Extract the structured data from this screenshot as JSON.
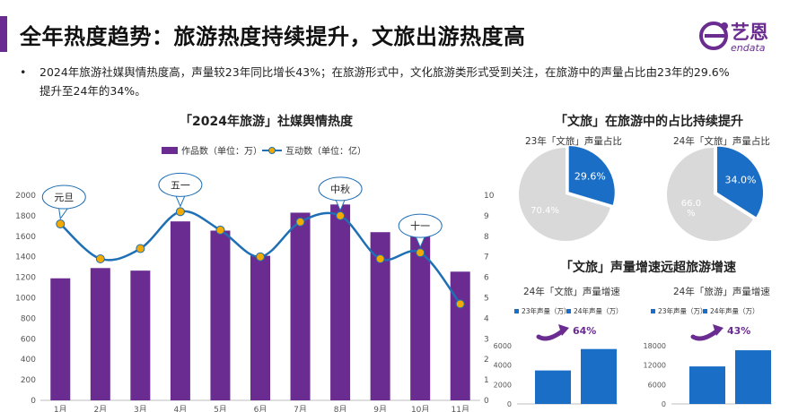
{
  "header": {
    "title": "全年热度趋势：旅游热度持续提升，文旅出游热度高",
    "logo_cn": "艺恩",
    "logo_en": "endata"
  },
  "bullet": {
    "marker": "•",
    "text": "2024年旅游社媒舆情热度高，声量较23年同比增长43%；在旅游形式中，文化旅游类形式受到关注，在旅游中的声量占比由23年的29.6%提升至24年的34%。"
  },
  "colors": {
    "brand": "#6a2c91",
    "bar": "#6a2c91",
    "line": "#1f6fb5",
    "marker": "#f2a900",
    "pie_highlight": "#1a6ec6",
    "pie_rest": "#d9d9d9"
  },
  "main_chart": {
    "title": "「2024年旅游」社媒舆情热度",
    "chart_data": {
      "type": "bar",
      "categories": [
        "1月",
        "2月",
        "3月",
        "4月",
        "5月",
        "6月",
        "7月",
        "8月",
        "9月",
        "10月",
        "11月"
      ],
      "series": [
        {
          "name": "作品数（单位：万）",
          "type": "bar",
          "axis": "left",
          "values": [
            1190,
            1290,
            1265,
            1745,
            1655,
            1410,
            1830,
            1910,
            1640,
            1750,
            1255
          ]
        },
        {
          "name": "互动数（单位：亿）",
          "type": "line",
          "axis": "right",
          "values": [
            8.6,
            6.9,
            7.4,
            9.2,
            8.3,
            7.0,
            8.7,
            9.0,
            6.9,
            7.2,
            4.7
          ]
        }
      ],
      "y_left_ticks": [
        "0",
        "200",
        "400",
        "600",
        "800",
        "1000",
        "1200",
        "1400",
        "1600",
        "1800",
        "2000"
      ],
      "y_right_ticks": [
        "0",
        "1",
        "2",
        "3",
        "4",
        "5",
        "6",
        "7",
        "8",
        "9",
        "10"
      ],
      "ylim_left": [
        0,
        2000
      ],
      "ylim_right": [
        0,
        10
      ],
      "annotations": [
        {
          "label": "元旦",
          "category": "1月"
        },
        {
          "label": "五一",
          "category": "4月"
        },
        {
          "label": "中秋",
          "category": "8月"
        },
        {
          "label": "十一",
          "category": "10月"
        }
      ],
      "legend_position": "top"
    }
  },
  "pies": {
    "title": "「文旅」在旅游中的占比持续提升",
    "chart_data": [
      {
        "type": "pie",
        "title": "23年「文旅」声量占比",
        "slices": [
          {
            "label": "29.6%",
            "value": 29.6,
            "highlight": true
          },
          {
            "label": "70.4%",
            "value": 70.4,
            "highlight": false
          }
        ]
      },
      {
        "type": "pie",
        "title": "24年「文旅」声量占比",
        "slices": [
          {
            "label": "34.0%",
            "value": 34.0,
            "highlight": true
          },
          {
            "label": "66.0\n%",
            "value": 66.0,
            "highlight": false
          }
        ]
      }
    ]
  },
  "growth": {
    "title": "「文旅」声量增速远超旅游增速",
    "chart_data": [
      {
        "type": "bar",
        "title": "24年「文旅」声量增速",
        "categories": [
          "23年声量（万）",
          "24年声量（万）"
        ],
        "values": [
          3450,
          5660
        ],
        "y_ticks": [
          "0",
          "2000",
          "4000",
          "6000"
        ],
        "ylim": [
          0,
          6000
        ],
        "growth_label": "64%"
      },
      {
        "type": "bar",
        "title": "24年「旅游」声量增速",
        "categories": [
          "23年声量（万）",
          "24年声量（万）"
        ],
        "values": [
          11600,
          16600
        ],
        "y_ticks": [
          "0",
          "6000",
          "12000",
          "18000"
        ],
        "ylim": [
          0,
          18000
        ],
        "growth_label": "43%"
      }
    ]
  }
}
